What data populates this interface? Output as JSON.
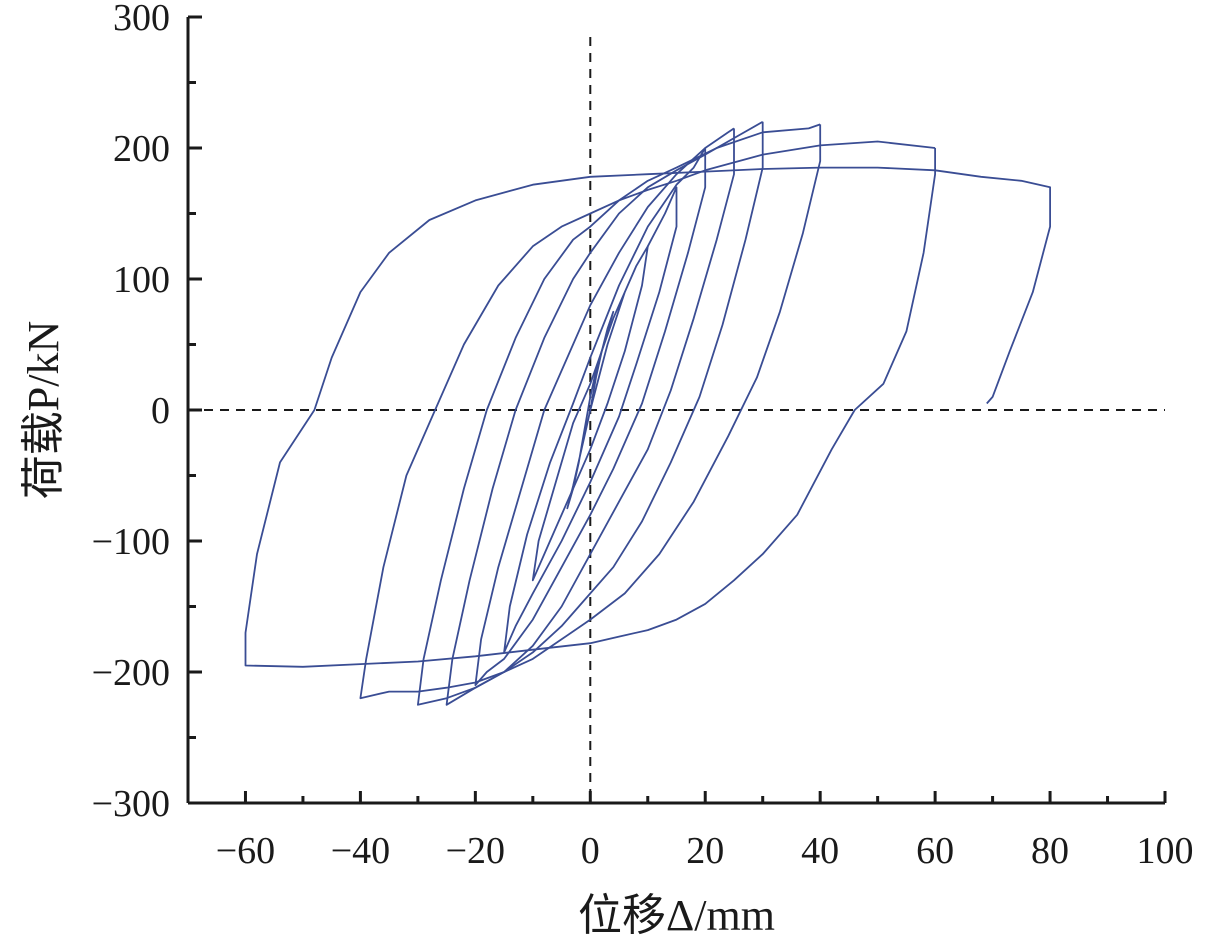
{
  "chart_data": {
    "type": "line",
    "title": "",
    "xlabel": "位移Δ/mm",
    "ylabel": "荷载P/kN",
    "xlim": [
      -70,
      100
    ],
    "ylim": [
      -300,
      300
    ],
    "x_ticks": [
      -60,
      -40,
      -20,
      0,
      20,
      40,
      60,
      80,
      100
    ],
    "x_tick_labels": [
      "−60",
      "−40",
      "−20",
      "0",
      "20",
      "40",
      "60",
      "80",
      "100"
    ],
    "y_ticks": [
      -300,
      -200,
      -100,
      0,
      100,
      200,
      300
    ],
    "y_tick_labels": [
      "−300",
      "−200",
      "−100",
      "0",
      "100",
      "200",
      "300"
    ],
    "x_minor_step": 10,
    "y_minor_step": 50,
    "grid": false,
    "legend": "none",
    "reference_lines": {
      "x": 0,
      "y": 0,
      "style": "dashed"
    },
    "line_color": "#3a4d94",
    "series": [
      {
        "values": [
          [
            0,
            0
          ],
          [
            1,
            25
          ],
          [
            2,
            45
          ],
          [
            3,
            62
          ],
          [
            4,
            75
          ],
          [
            3,
            60
          ],
          [
            1,
            30
          ],
          [
            0,
            10
          ],
          [
            -1,
            -15
          ],
          [
            -2,
            -40
          ],
          [
            -3,
            -60
          ],
          [
            -4,
            -75
          ],
          [
            -3,
            -58
          ],
          [
            -1,
            -20
          ],
          [
            0,
            0
          ]
        ]
      },
      {
        "values": [
          [
            0,
            0
          ],
          [
            3,
            50
          ],
          [
            6,
            90
          ],
          [
            8,
            110
          ],
          [
            10,
            125
          ],
          [
            9,
            95
          ],
          [
            6,
            45
          ],
          [
            3,
            5
          ],
          [
            0,
            -30
          ],
          [
            -3,
            -60
          ],
          [
            -6,
            -90
          ],
          [
            -8,
            -110
          ],
          [
            -10,
            -130
          ],
          [
            -9,
            -100
          ],
          [
            -6,
            -55
          ],
          [
            -3,
            -10
          ],
          [
            0,
            20
          ],
          [
            4,
            70
          ],
          [
            8,
            110
          ],
          [
            10,
            125
          ]
        ]
      },
      {
        "values": [
          [
            10,
            125
          ],
          [
            13,
            150
          ],
          [
            15,
            170
          ],
          [
            15,
            140
          ],
          [
            12,
            90
          ],
          [
            8,
            35
          ],
          [
            5,
            -5
          ],
          [
            0,
            -55
          ],
          [
            -5,
            -100
          ],
          [
            -10,
            -140
          ],
          [
            -13,
            -165
          ],
          [
            -15,
            -185
          ],
          [
            -14,
            -150
          ],
          [
            -11,
            -95
          ],
          [
            -7,
            -40
          ],
          [
            -3,
            5
          ],
          [
            0,
            40
          ],
          [
            5,
            95
          ],
          [
            10,
            140
          ],
          [
            15,
            172
          ],
          [
            18,
            185
          ],
          [
            20,
            200
          ]
        ]
      },
      {
        "values": [
          [
            20,
            200
          ],
          [
            20,
            170
          ],
          [
            17,
            120
          ],
          [
            13,
            60
          ],
          [
            9,
            5
          ],
          [
            4,
            -45
          ],
          [
            0,
            -80
          ],
          [
            -5,
            -120
          ],
          [
            -10,
            -160
          ],
          [
            -15,
            -190
          ],
          [
            -18,
            -200
          ],
          [
            -20,
            -210
          ],
          [
            -19,
            -175
          ],
          [
            -16,
            -120
          ],
          [
            -12,
            -60
          ],
          [
            -8,
            0
          ],
          [
            -4,
            40
          ],
          [
            0,
            80
          ],
          [
            5,
            120
          ],
          [
            10,
            155
          ],
          [
            15,
            180
          ],
          [
            20,
            200
          ],
          [
            24,
            212
          ],
          [
            25,
            215
          ]
        ]
      },
      {
        "values": [
          [
            25,
            215
          ],
          [
            25,
            180
          ],
          [
            22,
            130
          ],
          [
            18,
            70
          ],
          [
            14,
            15
          ],
          [
            10,
            -30
          ],
          [
            5,
            -70
          ],
          [
            0,
            -110
          ],
          [
            -5,
            -150
          ],
          [
            -10,
            -180
          ],
          [
            -15,
            -200
          ],
          [
            -20,
            -212
          ],
          [
            -25,
            -225
          ],
          [
            -24,
            -190
          ],
          [
            -21,
            -130
          ],
          [
            -17,
            -60
          ],
          [
            -13,
            0
          ],
          [
            -8,
            55
          ],
          [
            -3,
            100
          ],
          [
            0,
            120
          ],
          [
            5,
            150
          ],
          [
            10,
            170
          ],
          [
            15,
            183
          ],
          [
            20,
            195
          ],
          [
            26,
            210
          ],
          [
            30,
            220
          ]
        ]
      },
      {
        "values": [
          [
            30,
            220
          ],
          [
            30,
            185
          ],
          [
            27,
            130
          ],
          [
            23,
            65
          ],
          [
            19,
            10
          ],
          [
            14,
            -40
          ],
          [
            9,
            -85
          ],
          [
            4,
            -120
          ],
          [
            0,
            -140
          ],
          [
            -5,
            -165
          ],
          [
            -10,
            -185
          ],
          [
            -15,
            -200
          ],
          [
            -20,
            -212
          ],
          [
            -25,
            -220
          ],
          [
            -30,
            -225
          ],
          [
            -29,
            -190
          ],
          [
            -26,
            -130
          ],
          [
            -22,
            -60
          ],
          [
            -18,
            0
          ],
          [
            -13,
            55
          ],
          [
            -8,
            100
          ],
          [
            -3,
            130
          ],
          [
            0,
            140
          ],
          [
            5,
            160
          ],
          [
            10,
            175
          ],
          [
            15,
            185
          ],
          [
            22,
            200
          ],
          [
            30,
            212
          ],
          [
            38,
            215
          ],
          [
            40,
            218
          ]
        ]
      },
      {
        "values": [
          [
            40,
            218
          ],
          [
            40,
            190
          ],
          [
            37,
            135
          ],
          [
            33,
            75
          ],
          [
            29,
            25
          ],
          [
            24,
            -20
          ],
          [
            18,
            -70
          ],
          [
            12,
            -110
          ],
          [
            6,
            -140
          ],
          [
            0,
            -160
          ],
          [
            -5,
            -175
          ],
          [
            -10,
            -190
          ],
          [
            -15,
            -200
          ],
          [
            -20,
            -208
          ],
          [
            -25,
            -212
          ],
          [
            -30,
            -215
          ],
          [
            -35,
            -215
          ],
          [
            -40,
            -220
          ],
          [
            -39,
            -190
          ],
          [
            -36,
            -120
          ],
          [
            -32,
            -50
          ],
          [
            -27,
            0
          ],
          [
            -22,
            50
          ],
          [
            -16,
            95
          ],
          [
            -10,
            125
          ],
          [
            -5,
            140
          ],
          [
            0,
            150
          ],
          [
            5,
            160
          ],
          [
            10,
            168
          ],
          [
            15,
            175
          ],
          [
            20,
            183
          ],
          [
            30,
            195
          ],
          [
            40,
            202
          ],
          [
            50,
            205
          ],
          [
            60,
            200
          ]
        ]
      },
      {
        "values": [
          [
            60,
            200
          ],
          [
            60,
            180
          ],
          [
            58,
            120
          ],
          [
            55,
            60
          ],
          [
            51,
            20
          ],
          [
            46,
            0
          ],
          [
            42,
            -30
          ],
          [
            36,
            -80
          ],
          [
            30,
            -110
          ],
          [
            25,
            -130
          ],
          [
            20,
            -148
          ],
          [
            15,
            -160
          ],
          [
            10,
            -168
          ],
          [
            5,
            -173
          ],
          [
            0,
            -178
          ],
          [
            -10,
            -183
          ],
          [
            -20,
            -188
          ],
          [
            -30,
            -192
          ],
          [
            -40,
            -194
          ],
          [
            -50,
            -196
          ],
          [
            -60,
            -195
          ],
          [
            -60,
            -170
          ],
          [
            -58,
            -110
          ],
          [
            -54,
            -40
          ],
          [
            -48,
            0
          ],
          [
            -45,
            40
          ],
          [
            -40,
            90
          ],
          [
            -35,
            120
          ],
          [
            -28,
            145
          ],
          [
            -20,
            160
          ],
          [
            -10,
            172
          ],
          [
            0,
            178
          ],
          [
            10,
            180
          ],
          [
            20,
            182
          ],
          [
            30,
            184
          ],
          [
            40,
            185
          ],
          [
            50,
            185
          ],
          [
            60,
            183
          ],
          [
            68,
            178
          ],
          [
            75,
            175
          ],
          [
            80,
            170
          ],
          [
            80,
            140
          ],
          [
            77,
            90
          ],
          [
            73,
            45
          ],
          [
            70,
            10
          ],
          [
            69,
            5
          ]
        ]
      }
    ]
  }
}
